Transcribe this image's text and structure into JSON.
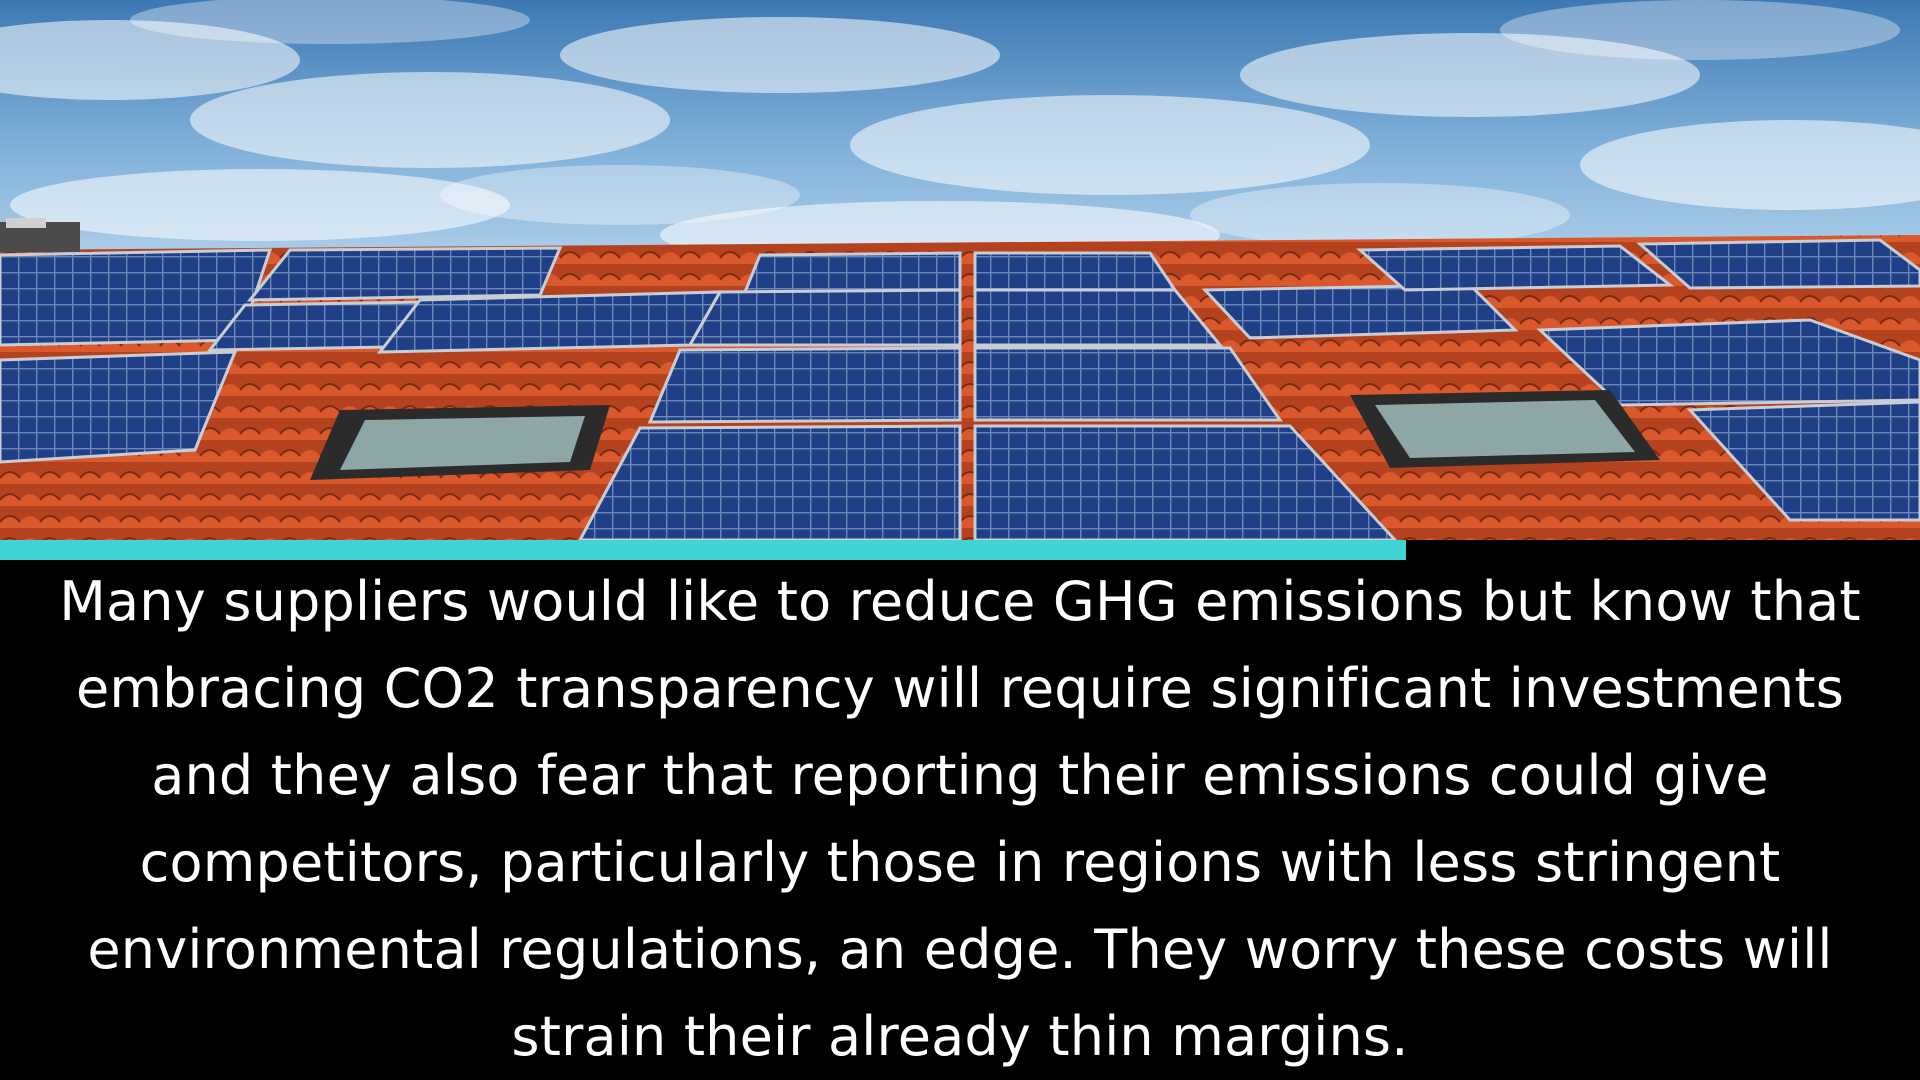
{
  "colors": {
    "accent_bar": "#3fd3d3",
    "background": "#000000",
    "caption_text": "#ffffff"
  },
  "caption": {
    "lines": [
      "Many suppliers would like to reduce GHG emissions but know that",
      "embracing CO2 transparency will require significant investments",
      "and they also fear that reporting their emissions could give",
      "competitors, particularly those in regions with less stringent",
      "environmental regulations, an edge.  They worry these costs will",
      "strain their already thin margins."
    ]
  }
}
